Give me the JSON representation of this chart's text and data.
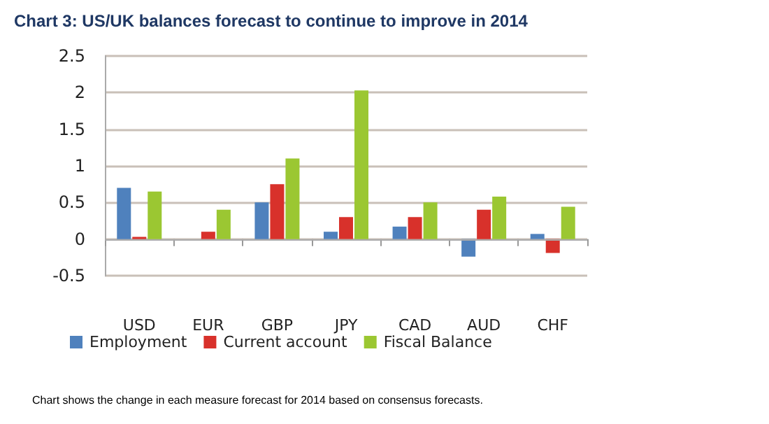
{
  "chart_data": {
    "type": "bar",
    "title": "Chart 3: US/UK balances forecast to continue to improve in 2014",
    "categories": [
      "USD",
      "EUR",
      "GBP",
      "JPY",
      "CAD",
      "AUD",
      "CHF"
    ],
    "series": [
      {
        "name": "Employment",
        "color": "#4f81bd",
        "values": [
          0.7,
          0,
          0.5,
          0.1,
          0.17,
          -0.24,
          0.07
        ]
      },
      {
        "name": "Current account",
        "color": "#d8312b",
        "values": [
          0.03,
          0.1,
          0.75,
          0.3,
          0.3,
          0.4,
          -0.19
        ]
      },
      {
        "name": "Fiscal Balance",
        "color": "#9bc732",
        "values": [
          0.65,
          0.4,
          1.1,
          2.03,
          0.5,
          0.58,
          0.44
        ]
      }
    ],
    "ylim": [
      -0.5,
      2.5
    ],
    "yticks": [
      -0.5,
      0,
      0.5,
      1,
      1.5,
      2,
      2.5
    ],
    "grid": "y",
    "legend": "bottom",
    "annotations": [
      "Chart shows the change in each measure forecast for 2014 based on consensus forecasts."
    ]
  }
}
